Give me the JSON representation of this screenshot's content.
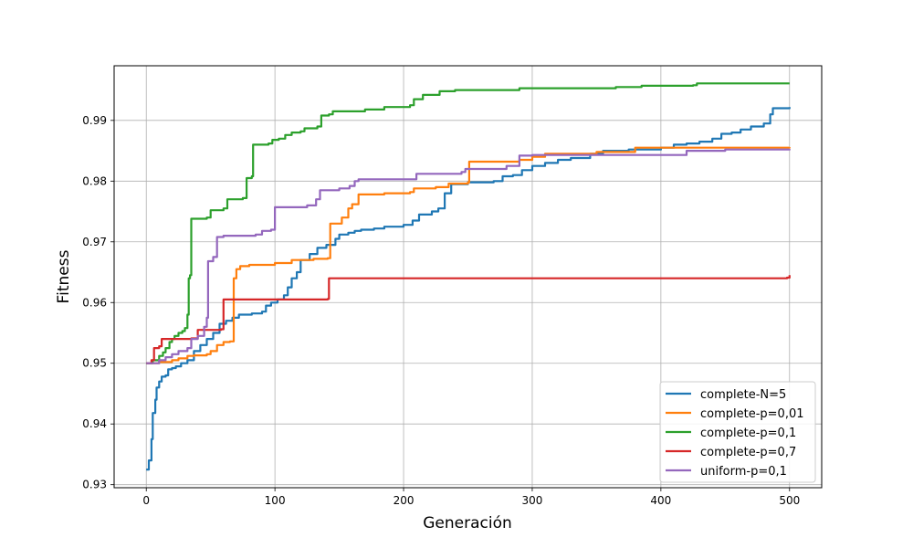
{
  "chart_data": {
    "type": "line",
    "title": "",
    "xlabel": "Generación",
    "ylabel": "Fitness",
    "xlim": [
      -25,
      525
    ],
    "ylim": [
      0.9295,
      0.999
    ],
    "xticks": [
      0,
      100,
      200,
      300,
      400,
      500
    ],
    "yticks": [
      0.93,
      0.94,
      0.95,
      0.96,
      0.97,
      0.98,
      0.99
    ],
    "ytick_labels": [
      "0.93",
      "0.94",
      "0.95",
      "0.96",
      "0.97",
      "0.98",
      "0.99"
    ],
    "grid": true,
    "legend_position": "bottom-right",
    "series": [
      {
        "name": "complete-N=5",
        "color": "#1f77b4",
        "points": [
          [
            0,
            0.9325
          ],
          [
            2,
            0.934
          ],
          [
            4,
            0.9375
          ],
          [
            5,
            0.9418
          ],
          [
            7,
            0.944
          ],
          [
            8,
            0.946
          ],
          [
            10,
            0.947
          ],
          [
            12,
            0.9478
          ],
          [
            15,
            0.948
          ],
          [
            17,
            0.949
          ],
          [
            20,
            0.9492
          ],
          [
            23,
            0.9495
          ],
          [
            27,
            0.95
          ],
          [
            32,
            0.9505
          ],
          [
            37,
            0.952
          ],
          [
            42,
            0.953
          ],
          [
            47,
            0.954
          ],
          [
            52,
            0.955
          ],
          [
            57,
            0.9565
          ],
          [
            62,
            0.957
          ],
          [
            67,
            0.9575
          ],
          [
            72,
            0.958
          ],
          [
            82,
            0.9582
          ],
          [
            90,
            0.9585
          ],
          [
            93,
            0.9595
          ],
          [
            97,
            0.96
          ],
          [
            102,
            0.9605
          ],
          [
            107,
            0.9612
          ],
          [
            110,
            0.9625
          ],
          [
            113,
            0.964
          ],
          [
            117,
            0.965
          ],
          [
            120,
            0.967
          ],
          [
            127,
            0.968
          ],
          [
            133,
            0.969
          ],
          [
            140,
            0.9695
          ],
          [
            147,
            0.9705
          ],
          [
            150,
            0.9712
          ],
          [
            157,
            0.9715
          ],
          [
            162,
            0.9718
          ],
          [
            167,
            0.972
          ],
          [
            177,
            0.9722
          ],
          [
            185,
            0.9725
          ],
          [
            200,
            0.9728
          ],
          [
            207,
            0.9735
          ],
          [
            212,
            0.9745
          ],
          [
            222,
            0.975
          ],
          [
            227,
            0.9755
          ],
          [
            232,
            0.978
          ],
          [
            237,
            0.9795
          ],
          [
            250,
            0.9798
          ],
          [
            270,
            0.98
          ],
          [
            277,
            0.9808
          ],
          [
            285,
            0.981
          ],
          [
            292,
            0.9818
          ],
          [
            300,
            0.9825
          ],
          [
            310,
            0.983
          ],
          [
            320,
            0.9835
          ],
          [
            330,
            0.9838
          ],
          [
            345,
            0.9845
          ],
          [
            355,
            0.985
          ],
          [
            375,
            0.9852
          ],
          [
            400,
            0.9855
          ],
          [
            410,
            0.986
          ],
          [
            420,
            0.9862
          ],
          [
            430,
            0.9865
          ],
          [
            440,
            0.987
          ],
          [
            447,
            0.9878
          ],
          [
            455,
            0.988
          ],
          [
            462,
            0.9885
          ],
          [
            470,
            0.989
          ],
          [
            480,
            0.9895
          ],
          [
            485,
            0.991
          ],
          [
            487,
            0.992
          ],
          [
            500,
            0.9922
          ]
        ]
      },
      {
        "name": "complete-p=0,01",
        "color": "#ff7f0e",
        "points": [
          [
            0,
            0.95
          ],
          [
            10,
            0.9502
          ],
          [
            20,
            0.9505
          ],
          [
            25,
            0.9508
          ],
          [
            32,
            0.9512
          ],
          [
            37,
            0.9513
          ],
          [
            47,
            0.9515
          ],
          [
            50,
            0.952
          ],
          [
            55,
            0.953
          ],
          [
            60,
            0.9535
          ],
          [
            65,
            0.9536
          ],
          [
            68,
            0.964
          ],
          [
            70,
            0.9655
          ],
          [
            73,
            0.966
          ],
          [
            80,
            0.9662
          ],
          [
            100,
            0.9665
          ],
          [
            113,
            0.967
          ],
          [
            130,
            0.9672
          ],
          [
            141,
            0.9673
          ],
          [
            143,
            0.973
          ],
          [
            152,
            0.974
          ],
          [
            157,
            0.9755
          ],
          [
            160,
            0.9762
          ],
          [
            165,
            0.9778
          ],
          [
            185,
            0.978
          ],
          [
            205,
            0.9782
          ],
          [
            208,
            0.9788
          ],
          [
            225,
            0.979
          ],
          [
            235,
            0.9796
          ],
          [
            250,
            0.9798
          ],
          [
            251,
            0.9832
          ],
          [
            290,
            0.9835
          ],
          [
            300,
            0.984
          ],
          [
            310,
            0.9845
          ],
          [
            350,
            0.9848
          ],
          [
            380,
            0.9855
          ],
          [
            500,
            0.9856
          ]
        ]
      },
      {
        "name": "complete-p=0,1",
        "color": "#2ca02c",
        "points": [
          [
            0,
            0.95
          ],
          [
            5,
            0.9505
          ],
          [
            10,
            0.9512
          ],
          [
            13,
            0.9518
          ],
          [
            15,
            0.9525
          ],
          [
            18,
            0.9535
          ],
          [
            20,
            0.954
          ],
          [
            22,
            0.9545
          ],
          [
            25,
            0.955
          ],
          [
            28,
            0.9553
          ],
          [
            30,
            0.9558
          ],
          [
            32,
            0.958
          ],
          [
            33,
            0.964
          ],
          [
            34,
            0.9645
          ],
          [
            35,
            0.9738
          ],
          [
            47,
            0.974
          ],
          [
            50,
            0.9752
          ],
          [
            60,
            0.9755
          ],
          [
            63,
            0.977
          ],
          [
            75,
            0.9772
          ],
          [
            78,
            0.9805
          ],
          [
            82,
            0.9808
          ],
          [
            83,
            0.986
          ],
          [
            95,
            0.9862
          ],
          [
            98,
            0.9868
          ],
          [
            103,
            0.987
          ],
          [
            108,
            0.9876
          ],
          [
            113,
            0.988
          ],
          [
            120,
            0.9882
          ],
          [
            123,
            0.9887
          ],
          [
            133,
            0.989
          ],
          [
            136,
            0.9908
          ],
          [
            142,
            0.991
          ],
          [
            145,
            0.9915
          ],
          [
            170,
            0.9918
          ],
          [
            185,
            0.9922
          ],
          [
            205,
            0.9925
          ],
          [
            208,
            0.9935
          ],
          [
            215,
            0.9942
          ],
          [
            228,
            0.9948
          ],
          [
            240,
            0.995
          ],
          [
            290,
            0.9953
          ],
          [
            365,
            0.9955
          ],
          [
            385,
            0.9957
          ],
          [
            425,
            0.9958
          ],
          [
            428,
            0.9961
          ],
          [
            500,
            0.9961
          ]
        ]
      },
      {
        "name": "complete-p=0,7",
        "color": "#d62728",
        "points": [
          [
            0,
            0.95
          ],
          [
            4,
            0.9505
          ],
          [
            6,
            0.9525
          ],
          [
            10,
            0.9528
          ],
          [
            12,
            0.954
          ],
          [
            35,
            0.9541
          ],
          [
            40,
            0.9555
          ],
          [
            58,
            0.9556
          ],
          [
            60,
            0.9605
          ],
          [
            80,
            0.9605
          ],
          [
            141,
            0.9606
          ],
          [
            142,
            0.964
          ],
          [
            300,
            0.964
          ],
          [
            498,
            0.9641
          ],
          [
            500,
            0.9645
          ]
        ]
      },
      {
        "name": "uniform-p=0,1",
        "color": "#9467bd",
        "points": [
          [
            0,
            0.95
          ],
          [
            10,
            0.9505
          ],
          [
            15,
            0.951
          ],
          [
            20,
            0.9515
          ],
          [
            25,
            0.952
          ],
          [
            32,
            0.9525
          ],
          [
            35,
            0.954
          ],
          [
            40,
            0.9545
          ],
          [
            45,
            0.956
          ],
          [
            47,
            0.9575
          ],
          [
            48,
            0.9668
          ],
          [
            52,
            0.9675
          ],
          [
            55,
            0.9708
          ],
          [
            60,
            0.971
          ],
          [
            85,
            0.9712
          ],
          [
            90,
            0.9718
          ],
          [
            97,
            0.972
          ],
          [
            100,
            0.9757
          ],
          [
            125,
            0.976
          ],
          [
            132,
            0.977
          ],
          [
            135,
            0.9785
          ],
          [
            150,
            0.9788
          ],
          [
            158,
            0.9792
          ],
          [
            162,
            0.98
          ],
          [
            165,
            0.9803
          ],
          [
            200,
            0.9803
          ],
          [
            210,
            0.9812
          ],
          [
            245,
            0.9815
          ],
          [
            248,
            0.982
          ],
          [
            280,
            0.9825
          ],
          [
            290,
            0.9842
          ],
          [
            300,
            0.9843
          ],
          [
            415,
            0.9843
          ],
          [
            420,
            0.985
          ],
          [
            450,
            0.9852
          ],
          [
            500,
            0.9853
          ]
        ]
      }
    ]
  }
}
